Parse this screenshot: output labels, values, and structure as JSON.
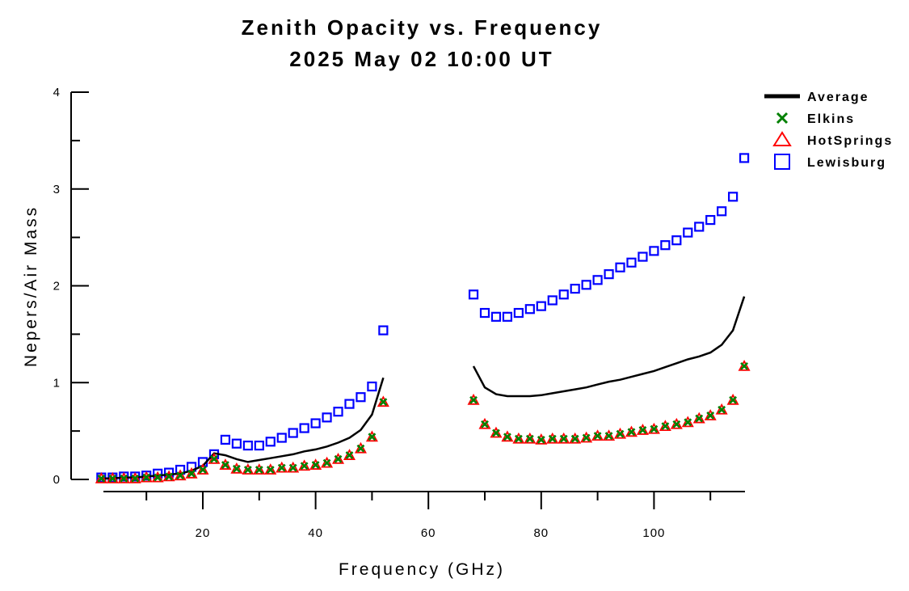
{
  "chart_data": {
    "type": "scatter",
    "title": "Zenith Opacity vs. Frequency",
    "subtitle": "2025 May 02 10:00 UT",
    "xlabel": "Frequency (GHz)",
    "ylabel": "Nepers/Air Mass",
    "xlim": [
      2,
      116
    ],
    "ylim": [
      0,
      4
    ],
    "x_ticks": [
      20,
      40,
      60,
      80,
      100
    ],
    "y_ticks": [
      0,
      1,
      2,
      3,
      4
    ],
    "grid": false,
    "legend_position": "top-right",
    "legend": [
      {
        "label": "Average",
        "marker": "line",
        "color": "#000000"
      },
      {
        "label": "Elkins",
        "marker": "x",
        "color": "#008000"
      },
      {
        "label": "HotSprings",
        "marker": "triangle",
        "color": "#ff0000"
      },
      {
        "label": "Lewisburg",
        "marker": "square",
        "color": "#0000ff"
      }
    ],
    "series": [
      {
        "name": "Average",
        "style": "line",
        "color": "#000000",
        "segments": [
          [
            [
              2,
              0.01
            ],
            [
              4,
              0.01
            ],
            [
              6,
              0.02
            ],
            [
              8,
              0.02
            ],
            [
              10,
              0.03
            ],
            [
              12,
              0.04
            ],
            [
              14,
              0.05
            ],
            [
              16,
              0.06
            ],
            [
              18,
              0.09
            ],
            [
              20,
              0.14
            ],
            [
              22,
              0.27
            ],
            [
              24,
              0.25
            ],
            [
              26,
              0.21
            ],
            [
              28,
              0.18
            ],
            [
              30,
              0.2
            ],
            [
              32,
              0.22
            ],
            [
              34,
              0.24
            ],
            [
              36,
              0.26
            ],
            [
              38,
              0.29
            ],
            [
              40,
              0.31
            ],
            [
              42,
              0.34
            ],
            [
              44,
              0.38
            ],
            [
              46,
              0.43
            ],
            [
              48,
              0.51
            ],
            [
              50,
              0.67
            ],
            [
              52,
              1.05
            ]
          ],
          [
            [
              68,
              1.17
            ],
            [
              70,
              0.95
            ],
            [
              72,
              0.88
            ],
            [
              74,
              0.86
            ],
            [
              76,
              0.86
            ],
            [
              78,
              0.86
            ],
            [
              80,
              0.87
            ],
            [
              82,
              0.89
            ],
            [
              84,
              0.91
            ],
            [
              86,
              0.93
            ],
            [
              88,
              0.95
            ],
            [
              90,
              0.98
            ],
            [
              92,
              1.01
            ],
            [
              94,
              1.03
            ],
            [
              96,
              1.06
            ],
            [
              98,
              1.09
            ],
            [
              100,
              1.12
            ],
            [
              102,
              1.16
            ],
            [
              104,
              1.2
            ],
            [
              106,
              1.24
            ],
            [
              108,
              1.27
            ],
            [
              110,
              1.31
            ],
            [
              112,
              1.39
            ],
            [
              114,
              1.54
            ],
            [
              116,
              1.89
            ]
          ]
        ]
      },
      {
        "name": "Elkins",
        "style": "x",
        "color": "#008000",
        "x": [
          2,
          4,
          6,
          8,
          10,
          12,
          14,
          16,
          18,
          20,
          22,
          24,
          26,
          28,
          30,
          32,
          34,
          36,
          38,
          40,
          42,
          44,
          46,
          48,
          50,
          52,
          68,
          70,
          72,
          74,
          76,
          78,
          80,
          82,
          84,
          86,
          88,
          90,
          92,
          94,
          96,
          98,
          100,
          102,
          104,
          106,
          108,
          110,
          112,
          114,
          116
        ],
        "y": [
          0.01,
          0.01,
          0.01,
          0.01,
          0.02,
          0.02,
          0.03,
          0.04,
          0.06,
          0.1,
          0.21,
          0.15,
          0.11,
          0.1,
          0.1,
          0.1,
          0.12,
          0.12,
          0.14,
          0.15,
          0.17,
          0.21,
          0.25,
          0.32,
          0.44,
          0.8,
          0.82,
          0.57,
          0.48,
          0.44,
          0.42,
          0.42,
          0.41,
          0.42,
          0.42,
          0.42,
          0.43,
          0.45,
          0.45,
          0.47,
          0.49,
          0.51,
          0.52,
          0.55,
          0.57,
          0.59,
          0.63,
          0.66,
          0.72,
          0.82,
          1.17
        ]
      },
      {
        "name": "HotSprings",
        "style": "triangle",
        "color": "#ff0000",
        "x": [
          2,
          4,
          6,
          8,
          10,
          12,
          14,
          16,
          18,
          20,
          22,
          24,
          26,
          28,
          30,
          32,
          34,
          36,
          38,
          40,
          42,
          44,
          46,
          48,
          50,
          52,
          68,
          70,
          72,
          74,
          76,
          78,
          80,
          82,
          84,
          86,
          88,
          90,
          92,
          94,
          96,
          98,
          100,
          102,
          104,
          106,
          108,
          110,
          112,
          114,
          116
        ],
        "y": [
          0.01,
          0.01,
          0.01,
          0.01,
          0.02,
          0.02,
          0.03,
          0.04,
          0.06,
          0.1,
          0.21,
          0.15,
          0.11,
          0.1,
          0.1,
          0.1,
          0.12,
          0.12,
          0.14,
          0.15,
          0.17,
          0.21,
          0.25,
          0.32,
          0.44,
          0.8,
          0.82,
          0.57,
          0.48,
          0.44,
          0.42,
          0.42,
          0.41,
          0.42,
          0.42,
          0.42,
          0.43,
          0.45,
          0.45,
          0.47,
          0.49,
          0.51,
          0.52,
          0.55,
          0.57,
          0.59,
          0.63,
          0.66,
          0.72,
          0.82,
          1.17
        ]
      },
      {
        "name": "Lewisburg",
        "style": "square",
        "color": "#0000ff",
        "x": [
          2,
          4,
          6,
          8,
          10,
          12,
          14,
          16,
          18,
          20,
          22,
          24,
          26,
          28,
          30,
          32,
          34,
          36,
          38,
          40,
          42,
          44,
          46,
          48,
          50,
          52,
          68,
          70,
          72,
          74,
          76,
          78,
          80,
          82,
          84,
          86,
          88,
          90,
          92,
          94,
          96,
          98,
          100,
          102,
          104,
          106,
          108,
          110,
          112,
          114,
          116
        ],
        "y": [
          0.02,
          0.02,
          0.03,
          0.03,
          0.04,
          0.06,
          0.07,
          0.1,
          0.13,
          0.18,
          0.26,
          0.41,
          0.37,
          0.35,
          0.35,
          0.39,
          0.43,
          0.48,
          0.53,
          0.58,
          0.64,
          0.7,
          0.78,
          0.85,
          0.96,
          1.54,
          1.91,
          1.72,
          1.68,
          1.68,
          1.72,
          1.76,
          1.79,
          1.85,
          1.91,
          1.97,
          2.01,
          2.06,
          2.12,
          2.19,
          2.24,
          2.3,
          2.36,
          2.42,
          2.47,
          2.55,
          2.61,
          2.68,
          2.77,
          2.92,
          3.32
        ]
      }
    ]
  }
}
